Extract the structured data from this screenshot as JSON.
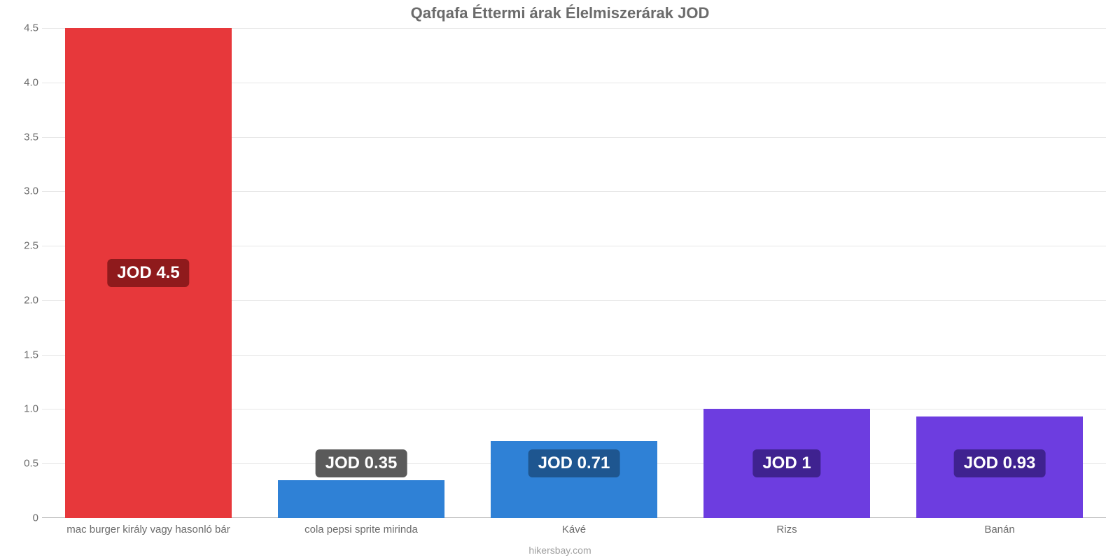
{
  "chart": {
    "type": "bar",
    "title": "Qafqafa Éttermi árak Élelmiszerárak JOD",
    "title_fontsize": 22,
    "title_color": "#6b6b6b",
    "background_color": "#ffffff",
    "grid_color": "#e6e6e6",
    "axis_text_color": "#6b6b6b",
    "axis_fontsize": 15,
    "ylim": [
      0,
      4.5
    ],
    "ytick_step": 0.5,
    "yticks": [
      "0",
      "0.5",
      "1.0",
      "1.5",
      "2.0",
      "2.5",
      "3.0",
      "3.5",
      "4.0",
      "4.5"
    ],
    "bar_width_ratio": 0.78,
    "value_label_prefix": "JOD ",
    "value_label_fontsize": 24,
    "value_label_text_color": "#ffffff",
    "categories": [
      "mac burger király vagy hasonló bár",
      "cola pepsi sprite mirinda",
      "Kávé",
      "Rizs",
      "Banán"
    ],
    "values": [
      4.5,
      0.35,
      0.71,
      1,
      0.93
    ],
    "value_labels": [
      "JOD 4.5",
      "JOD 0.35",
      "JOD 0.71",
      "JOD 1",
      "JOD 0.93"
    ],
    "bar_colors": [
      "#e7383b",
      "#2f81d6",
      "#2f81d6",
      "#6d3de0",
      "#6d3de0"
    ],
    "badge_colors": [
      "#8f1a1c",
      "#5a5a5a",
      "#1e5690",
      "#3f2290",
      "#3f2290"
    ],
    "footer": "hikersbay.com",
    "footer_color": "#9e9e9e",
    "footer_fontsize": 14
  }
}
